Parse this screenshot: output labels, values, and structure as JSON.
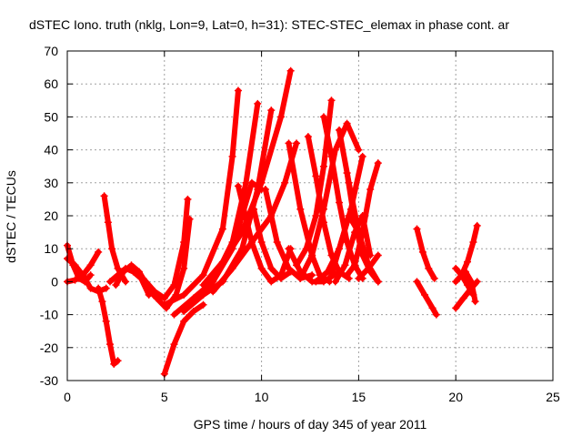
{
  "chart_data": {
    "type": "scatter",
    "title": "dSTEC Iono. truth (nklg, Lon=9, Lat=0, h=31): STEC-STEC_elemax in phase cont. ar",
    "xlabel": "GPS time / hours of day 345 of year 2011",
    "ylabel": "dSTEC  / TECUs",
    "xlim": [
      0,
      25
    ],
    "ylim": [
      -30,
      70
    ],
    "xticks": [
      0,
      5,
      10,
      15,
      20,
      25
    ],
    "yticks": [
      -30,
      -20,
      -10,
      0,
      10,
      20,
      30,
      40,
      50,
      60,
      70
    ],
    "grid": true,
    "marker": "+",
    "color": "#ff0000",
    "series": [
      {
        "x": [
          0.0,
          0.3,
          0.6,
          0.9,
          1.2
        ],
        "values": [
          11,
          5,
          1,
          0,
          2
        ]
      },
      {
        "x": [
          0.0,
          0.4,
          0.8,
          1.2,
          1.6
        ],
        "values": [
          0,
          0.5,
          2,
          5,
          9
        ]
      },
      {
        "x": [
          0.0,
          0.4,
          0.8,
          1.2,
          1.6,
          2.0
        ],
        "values": [
          7,
          5,
          2,
          -2,
          -3,
          -2
        ]
      },
      {
        "x": [
          1.6,
          1.8,
          2.0,
          2.2,
          2.4,
          2.6
        ],
        "values": [
          -2,
          -6,
          -12,
          -19,
          -25,
          -24
        ]
      },
      {
        "x": [
          1.9,
          2.1,
          2.3,
          2.6,
          3.0
        ],
        "values": [
          26,
          18,
          10,
          4,
          0
        ]
      },
      {
        "x": [
          2.5,
          2.9,
          3.3,
          3.7,
          4.1
        ],
        "values": [
          -1,
          3,
          5,
          3,
          -1
        ]
      },
      {
        "x": [
          2.2,
          2.6,
          3.0,
          3.4,
          3.8,
          4.2
        ],
        "values": [
          0,
          2,
          4,
          3,
          1,
          -4
        ]
      },
      {
        "x": [
          3.9,
          4.5,
          5.0,
          5.5,
          6.0,
          6.2
        ],
        "values": [
          1,
          -3,
          -5,
          -1,
          12,
          25
        ]
      },
      {
        "x": [
          4.1,
          4.6,
          5.1,
          5.6,
          6.0,
          6.3
        ],
        "values": [
          -2,
          -5,
          -8,
          -4,
          4,
          19
        ]
      },
      {
        "x": [
          5.0,
          5.5,
          6.0,
          6.5,
          7.0
        ],
        "values": [
          -28,
          -19,
          -12,
          -9,
          -7
        ]
      },
      {
        "x": [
          5.0,
          6.0,
          7.0,
          8.0,
          8.5,
          8.8
        ],
        "values": [
          -7,
          -4,
          2,
          16,
          38,
          58
        ]
      },
      {
        "x": [
          5.5,
          6.5,
          7.5,
          8.5,
          9.2,
          9.8
        ],
        "values": [
          -10,
          -5,
          0,
          12,
          30,
          54
        ]
      },
      {
        "x": [
          6.0,
          7.0,
          8.0,
          9.0,
          9.8,
          10.5
        ],
        "values": [
          -9,
          -4,
          0,
          10,
          28,
          52
        ]
      },
      {
        "x": [
          6.5,
          7.5,
          8.5,
          9.0,
          9.5,
          10.0
        ],
        "values": [
          -5,
          0,
          10,
          20,
          30,
          28
        ]
      },
      {
        "x": [
          7.0,
          8.0,
          9.0,
          10.0,
          11.0,
          11.5
        ],
        "values": [
          -1,
          6,
          15,
          30,
          50,
          64
        ]
      },
      {
        "x": [
          7.5,
          8.5,
          9.5,
          10.5,
          11.2,
          11.8
        ],
        "values": [
          -3,
          4,
          12,
          20,
          30,
          42
        ]
      },
      {
        "x": [
          8.8,
          9.5,
          10.0,
          10.5,
          11.0,
          11.5
        ],
        "values": [
          29,
          12,
          4,
          0,
          2,
          10
        ]
      },
      {
        "x": [
          9.6,
          10.0,
          10.5,
          11.0,
          11.5
        ],
        "values": [
          22,
          12,
          4,
          1,
          3
        ]
      },
      {
        "x": [
          10.2,
          10.8,
          11.4,
          12.0,
          12.6
        ],
        "values": [
          28,
          12,
          4,
          1,
          2
        ]
      },
      {
        "x": [
          11.4,
          12.0,
          12.6,
          13.0,
          13.5
        ],
        "values": [
          42,
          22,
          8,
          2,
          0
        ]
      },
      {
        "x": [
          11.4,
          12.0,
          12.6,
          13.2,
          14.0
        ],
        "values": [
          10,
          3,
          0,
          0,
          3
        ]
      },
      {
        "x": [
          11.8,
          12.3,
          12.8,
          13.2,
          13.6
        ],
        "values": [
          5,
          10,
          20,
          35,
          55
        ]
      },
      {
        "x": [
          12.0,
          12.6,
          13.2,
          13.8,
          14.4,
          15.0
        ],
        "values": [
          1,
          8,
          22,
          40,
          48,
          40
        ]
      },
      {
        "x": [
          12.4,
          12.8,
          13.2,
          13.6,
          14.0,
          14.5
        ],
        "values": [
          44,
          32,
          18,
          8,
          3,
          1
        ]
      },
      {
        "x": [
          12.8,
          13.4,
          14.0,
          14.6,
          15.2
        ],
        "values": [
          0,
          3,
          10,
          22,
          38
        ]
      },
      {
        "x": [
          13.2,
          13.6,
          14.0,
          14.4,
          14.8,
          15.2
        ],
        "values": [
          50,
          38,
          24,
          12,
          5,
          1
        ]
      },
      {
        "x": [
          13.6,
          14.0,
          14.5,
          15.0,
          15.5,
          16.0
        ],
        "values": [
          2,
          10,
          20,
          15,
          5,
          0
        ]
      },
      {
        "x": [
          14.0,
          14.5,
          15.0,
          15.5,
          16.0
        ],
        "values": [
          46,
          30,
          15,
          5,
          0
        ]
      },
      {
        "x": [
          13.8,
          14.3,
          14.8,
          15.2,
          15.6
        ],
        "values": [
          0,
          5,
          15,
          20,
          8
        ]
      },
      {
        "x": [
          14.4,
          14.8,
          15.2,
          15.6,
          16.0
        ],
        "values": [
          2,
          5,
          15,
          28,
          36
        ]
      },
      {
        "x": [
          14.4,
          14.8,
          15.2,
          15.6,
          16.0
        ],
        "values": [
          33,
          18,
          8,
          3,
          0
        ]
      },
      {
        "x": [
          15.0,
          15.5,
          16.0
        ],
        "values": [
          1,
          4,
          8
        ]
      },
      {
        "x": [
          18.0,
          18.3,
          18.6,
          18.9
        ],
        "values": [
          16,
          9,
          4,
          1
        ]
      },
      {
        "x": [
          18.0,
          18.4,
          18.8,
          19.0
        ],
        "values": [
          0,
          -4,
          -8,
          -10
        ]
      },
      {
        "x": [
          20.0,
          20.3,
          20.6,
          20.9
        ],
        "values": [
          4,
          2,
          -1,
          -4
        ]
      },
      {
        "x": [
          20.0,
          20.4,
          20.8,
          21.1
        ],
        "values": [
          -8,
          -5,
          -2,
          0
        ]
      },
      {
        "x": [
          20.0,
          20.3,
          20.6,
          20.9,
          21.1
        ],
        "values": [
          0,
          2,
          6,
          12,
          17
        ]
      },
      {
        "x": [
          20.5,
          20.8,
          21.0
        ],
        "values": [
          3,
          0,
          -6
        ]
      }
    ]
  }
}
